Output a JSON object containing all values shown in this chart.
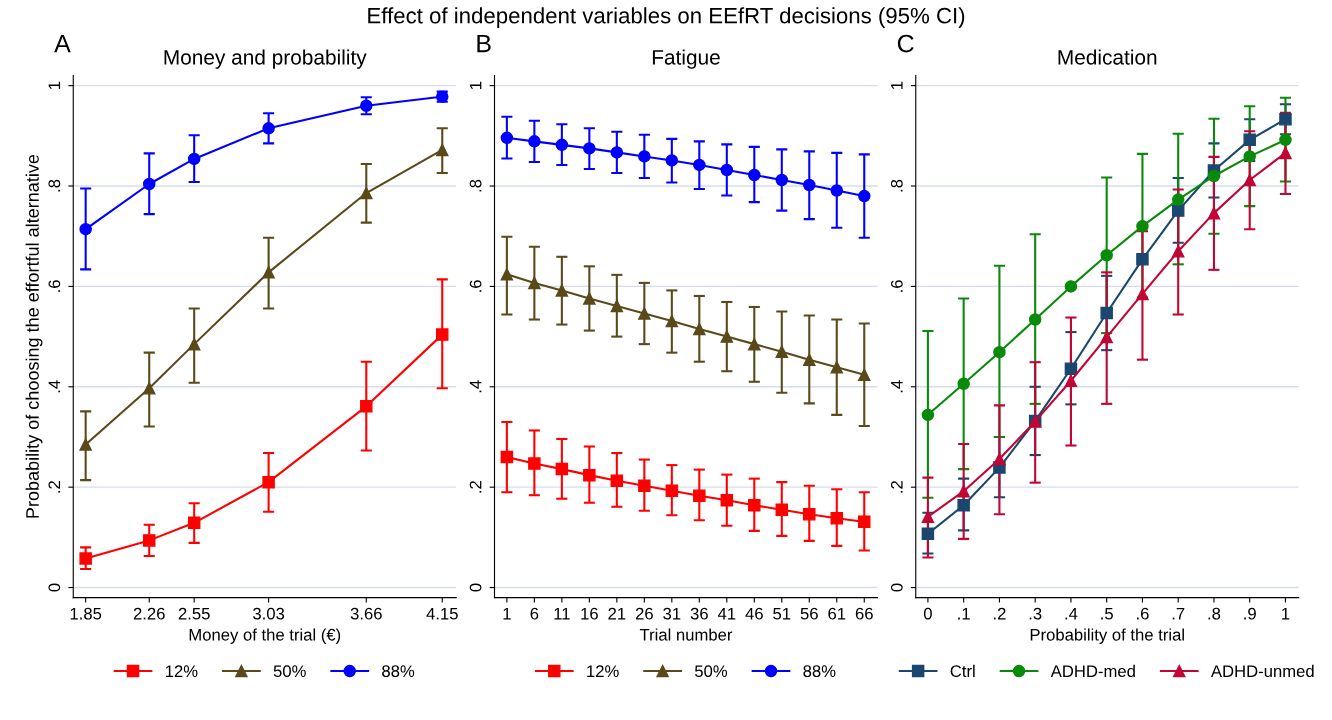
{
  "chart_data": [
    {
      "type": "line",
      "title": "Money and probability",
      "xlabel": "Money of the trial (€)",
      "ylabel": "Probability of choosing the effortful alternative",
      "annotations": [
        "A",
        "Effect of independent variables on EEfRT decisions (95% CI)"
      ],
      "x": [
        1.85,
        2.26,
        2.55,
        3.03,
        3.66,
        4.15
      ],
      "xlim": [
        1.77,
        4.24
      ],
      "xticks": [
        1.85,
        2.26,
        2.55,
        3.03,
        3.66,
        4.15
      ],
      "ylim": [
        -0.02,
        1.02
      ],
      "yticks": [
        {
          "value": 0,
          "label": "0"
        },
        {
          "value": 0.2,
          "label": ".2"
        },
        {
          "value": 0.4,
          "label": ".4"
        },
        {
          "value": 0.6,
          "label": ".6"
        },
        {
          "value": 0.8,
          "label": ".8"
        },
        {
          "value": 1,
          "label": "1"
        }
      ],
      "grid": "y",
      "legend": "bottom",
      "series": [
        {
          "name": "12%",
          "color": "#ff0000",
          "marker": "square",
          "values": [
            0.058,
            0.094,
            0.129,
            0.21,
            0.361,
            0.504
          ],
          "errors": [
            [
              0.037,
              0.08
            ],
            [
              0.063,
              0.125
            ],
            [
              0.089,
              0.168
            ],
            [
              0.151,
              0.268
            ],
            [
              0.273,
              0.45
            ],
            [
              0.397,
              0.614
            ]
          ]
        },
        {
          "name": "50%",
          "color": "#5a4a1a",
          "marker": "triangle",
          "values": [
            0.285,
            0.397,
            0.485,
            0.628,
            0.786,
            0.872
          ],
          "errors": [
            [
              0.214,
              0.351
            ],
            [
              0.321,
              0.468
            ],
            [
              0.408,
              0.556
            ],
            [
              0.556,
              0.697
            ],
            [
              0.727,
              0.844
            ],
            [
              0.826,
              0.915
            ]
          ]
        },
        {
          "name": "88%",
          "color": "#0000ff",
          "marker": "circle",
          "values": [
            0.714,
            0.804,
            0.854,
            0.915,
            0.96,
            0.978
          ],
          "errors": [
            [
              0.634,
              0.795
            ],
            [
              0.744,
              0.865
            ],
            [
              0.808,
              0.901
            ],
            [
              0.885,
              0.945
            ],
            [
              0.943,
              0.977
            ],
            [
              0.968,
              0.988
            ]
          ]
        }
      ]
    },
    {
      "type": "line",
      "title": "Fatigue",
      "xlabel": "Trial number",
      "annotations": [
        "B"
      ],
      "x": [
        1,
        6,
        11,
        16,
        21,
        26,
        31,
        36,
        41,
        46,
        51,
        56,
        61,
        66
      ],
      "xlim": [
        -1.25,
        68.4
      ],
      "xticks": [
        1,
        6,
        11,
        16,
        21,
        26,
        31,
        36,
        41,
        46,
        51,
        56,
        61,
        66
      ],
      "ylim": [
        -0.02,
        1.02
      ],
      "yticks": [
        {
          "value": 0,
          "label": "0"
        },
        {
          "value": 0.2,
          "label": ".2"
        },
        {
          "value": 0.4,
          "label": ".4"
        },
        {
          "value": 0.6,
          "label": ".6"
        },
        {
          "value": 0.8,
          "label": ".8"
        },
        {
          "value": 1,
          "label": "1"
        }
      ],
      "grid": "y",
      "legend": "bottom",
      "series": [
        {
          "name": "12%",
          "color": "#ff0000",
          "marker": "square",
          "values": [
            0.26,
            0.247,
            0.236,
            0.224,
            0.213,
            0.203,
            0.193,
            0.183,
            0.174,
            0.164,
            0.155,
            0.146,
            0.138,
            0.131
          ],
          "errors": [
            [
              0.19,
              0.33
            ],
            [
              0.184,
              0.313
            ],
            [
              0.177,
              0.296
            ],
            [
              0.169,
              0.281
            ],
            [
              0.161,
              0.268
            ],
            [
              0.153,
              0.255
            ],
            [
              0.144,
              0.244
            ],
            [
              0.134,
              0.235
            ],
            [
              0.123,
              0.225
            ],
            [
              0.113,
              0.217
            ],
            [
              0.103,
              0.21
            ],
            [
              0.093,
              0.203
            ],
            [
              0.083,
              0.196
            ],
            [
              0.074,
              0.19
            ]
          ]
        },
        {
          "name": "50%",
          "color": "#5a4a1a",
          "marker": "triangle",
          "values": [
            0.624,
            0.607,
            0.592,
            0.576,
            0.561,
            0.546,
            0.531,
            0.515,
            0.5,
            0.485,
            0.47,
            0.454,
            0.439,
            0.424
          ],
          "errors": [
            [
              0.544,
              0.699
            ],
            [
              0.534,
              0.679
            ],
            [
              0.524,
              0.659
            ],
            [
              0.512,
              0.64
            ],
            [
              0.5,
              0.623
            ],
            [
              0.485,
              0.607
            ],
            [
              0.468,
              0.592
            ],
            [
              0.45,
              0.581
            ],
            [
              0.431,
              0.569
            ],
            [
              0.41,
              0.559
            ],
            [
              0.388,
              0.55
            ],
            [
              0.367,
              0.542
            ],
            [
              0.344,
              0.534
            ],
            [
              0.322,
              0.526
            ]
          ]
        },
        {
          "name": "88%",
          "color": "#0000ff",
          "marker": "circle",
          "values": [
            0.896,
            0.889,
            0.882,
            0.875,
            0.867,
            0.859,
            0.851,
            0.842,
            0.832,
            0.822,
            0.812,
            0.802,
            0.791,
            0.78
          ],
          "errors": [
            [
              0.855,
              0.938
            ],
            [
              0.848,
              0.93
            ],
            [
              0.842,
              0.923
            ],
            [
              0.834,
              0.915
            ],
            [
              0.826,
              0.908
            ],
            [
              0.816,
              0.902
            ],
            [
              0.807,
              0.894
            ],
            [
              0.794,
              0.889
            ],
            [
              0.781,
              0.883
            ],
            [
              0.768,
              0.878
            ],
            [
              0.751,
              0.873
            ],
            [
              0.734,
              0.869
            ],
            [
              0.717,
              0.866
            ],
            [
              0.697,
              0.863
            ]
          ]
        }
      ]
    },
    {
      "type": "line",
      "title": "Medication",
      "xlabel": "Probability of the trial",
      "annotations": [
        "C"
      ],
      "x": [
        0,
        0.1,
        0.2,
        0.3,
        0.4,
        0.5,
        0.6,
        0.7,
        0.8,
        0.9,
        1
      ],
      "xlim": [
        -0.034,
        1.037
      ],
      "xticks": [
        {
          "value": 0,
          "label": "0"
        },
        {
          "value": 0.1,
          "label": ".1"
        },
        {
          "value": 0.2,
          "label": ".2"
        },
        {
          "value": 0.3,
          "label": ".3"
        },
        {
          "value": 0.4,
          "label": ".4"
        },
        {
          "value": 0.5,
          "label": ".5"
        },
        {
          "value": 0.6,
          "label": ".6"
        },
        {
          "value": 0.7,
          "label": ".7"
        },
        {
          "value": 0.8,
          "label": ".8"
        },
        {
          "value": 0.9,
          "label": ".9"
        },
        {
          "value": 1,
          "label": "1"
        }
      ],
      "ylim": [
        -0.02,
        1.02
      ],
      "yticks": [
        {
          "value": 0,
          "label": "0"
        },
        {
          "value": 0.2,
          "label": ".2"
        },
        {
          "value": 0.4,
          "label": ".4"
        },
        {
          "value": 0.6,
          "label": ".6"
        },
        {
          "value": 0.8,
          "label": ".8"
        },
        {
          "value": 1,
          "label": "1"
        }
      ],
      "grid": "y",
      "legend": "bottom",
      "series": [
        {
          "name": "Ctrl",
          "color": "#1a476f",
          "marker": "square",
          "values": [
            0.107,
            0.164,
            0.239,
            0.332,
            0.436,
            0.547,
            0.654,
            0.751,
            0.831,
            0.892,
            0.933
          ],
          "errors": [
            [
              0.068,
              0.149
            ],
            [
              0.114,
              0.217
            ],
            [
              0.18,
              0.3
            ],
            [
              0.264,
              0.4
            ],
            [
              0.365,
              0.509
            ],
            [
              0.473,
              0.621
            ],
            null,
            [
              0.687,
              0.816
            ],
            [
              0.777,
              0.885
            ],
            [
              0.85,
              0.933
            ],
            [
              0.903,
              0.963
            ]
          ]
        },
        {
          "name": "ADHD-med",
          "color": "#0a8a0a",
          "marker": "circle",
          "values": [
            0.344,
            0.406,
            0.469,
            0.534,
            0.6,
            0.662,
            0.72,
            0.773,
            0.82,
            0.859,
            0.892
          ],
          "errors": [
            [
              0.179,
              0.511
            ],
            [
              0.236,
              0.576
            ],
            [
              0.3,
              0.641
            ],
            [
              0.366,
              0.704
            ],
            null,
            [
              0.507,
              0.817
            ],
            [
              0.578,
              0.864
            ],
            [
              0.644,
              0.904
            ],
            [
              0.705,
              0.934
            ],
            [
              0.76,
              0.959
            ],
            [
              0.809,
              0.976
            ]
          ]
        },
        {
          "name": "ADHD-unmed",
          "color": "#c10534",
          "marker": "triangle",
          "values": [
            0.141,
            0.192,
            0.256,
            0.331,
            0.412,
            0.499,
            0.585,
            0.67,
            0.746,
            0.812,
            0.866
          ],
          "errors": [
            [
              0.06,
              0.219
            ],
            [
              0.097,
              0.286
            ],
            [
              0.146,
              0.363
            ],
            [
              0.209,
              0.449
            ],
            [
              0.283,
              0.538
            ],
            [
              0.366,
              0.628
            ],
            [
              0.454,
              0.71
            ],
            [
              0.544,
              0.793
            ],
            [
              0.633,
              0.858
            ],
            [
              0.714,
              0.909
            ],
            [
              0.784,
              0.946
            ]
          ]
        }
      ]
    }
  ]
}
